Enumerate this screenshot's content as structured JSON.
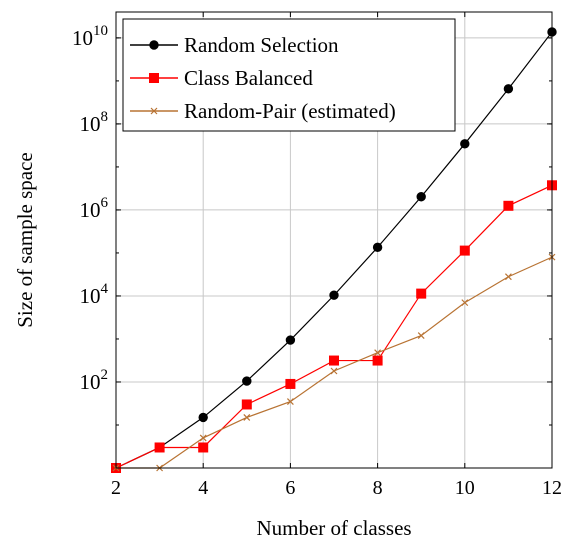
{
  "chart_data": {
    "type": "line",
    "title": "",
    "xlabel": "Number of classes",
    "ylabel": "Size of sample space",
    "x": [
      2,
      3,
      4,
      5,
      6,
      7,
      8,
      9,
      10,
      11,
      12
    ],
    "xlim": [
      2,
      12
    ],
    "ylim": [
      1,
      40000000000
    ],
    "y_scale": "log",
    "grid": true,
    "legend_position": "top-left",
    "x_ticks": [
      "2",
      "4",
      "6",
      "8",
      "10",
      "12"
    ],
    "y_ticks": [
      {
        "base": "10",
        "exp": "2",
        "value": 100
      },
      {
        "base": "10",
        "exp": "4",
        "value": 10000
      },
      {
        "base": "10",
        "exp": "6",
        "value": 1000000
      },
      {
        "base": "10",
        "exp": "8",
        "value": 100000000
      },
      {
        "base": "10",
        "exp": "10",
        "value": 10000000000
      }
    ],
    "series": [
      {
        "name": "Random Selection",
        "color": "#000000",
        "marker": "circle",
        "values": [
          1,
          3,
          15,
          105,
          945,
          10395,
          135135,
          2027025,
          34459425,
          654729075,
          13749310575
        ]
      },
      {
        "name": "Class Balanced",
        "color": "#ff0000",
        "marker": "square",
        "values": [
          1,
          3,
          3,
          30,
          90,
          315,
          315,
          11340,
          113400,
          1247400,
          3742200
        ]
      },
      {
        "name": "Random-Pair (estimated)",
        "color": "#b87333",
        "marker": "x",
        "values": [
          1,
          1,
          5,
          15,
          35,
          180,
          480,
          1200,
          7000,
          28000,
          80000
        ]
      }
    ]
  }
}
